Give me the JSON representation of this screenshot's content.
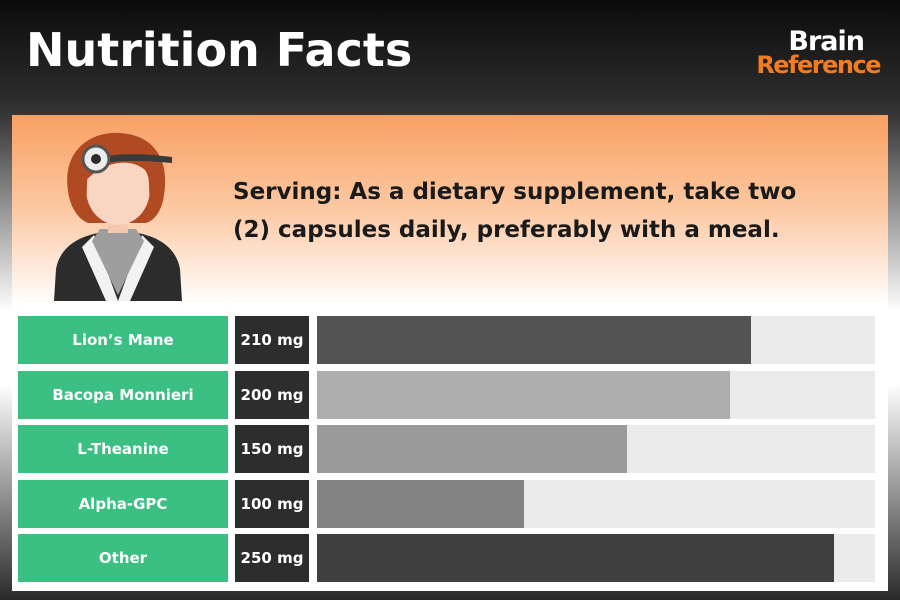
{
  "header": {
    "title": "Nutrition Facts",
    "logo_line1": "Brain",
    "logo_line2": "Reference"
  },
  "serving": {
    "text": "Serving: As a dietary supplement, take two (2) capsules daily, preferably with a meal."
  },
  "colors": {
    "label_green": "#3cbf82",
    "amount_bg": "#2d2d2d",
    "track_bg": "#ebebeb",
    "logo_orange": "#f47c20"
  },
  "chart_data": {
    "type": "bar",
    "orientation": "horizontal",
    "unit": "mg",
    "max": 270,
    "categories": [
      "Lion’s Mane",
      "Bacopa Monnieri",
      "L-Theanine",
      "Alpha-GPC",
      "Other"
    ],
    "values": [
      210,
      200,
      150,
      100,
      250
    ],
    "value_labels": [
      "210 mg",
      "200 mg",
      "150 mg",
      "100 mg",
      "250 mg"
    ],
    "bar_colors": [
      "#535353",
      "#adadad",
      "#9a9a9a",
      "#838383",
      "#3f3f3f"
    ]
  }
}
